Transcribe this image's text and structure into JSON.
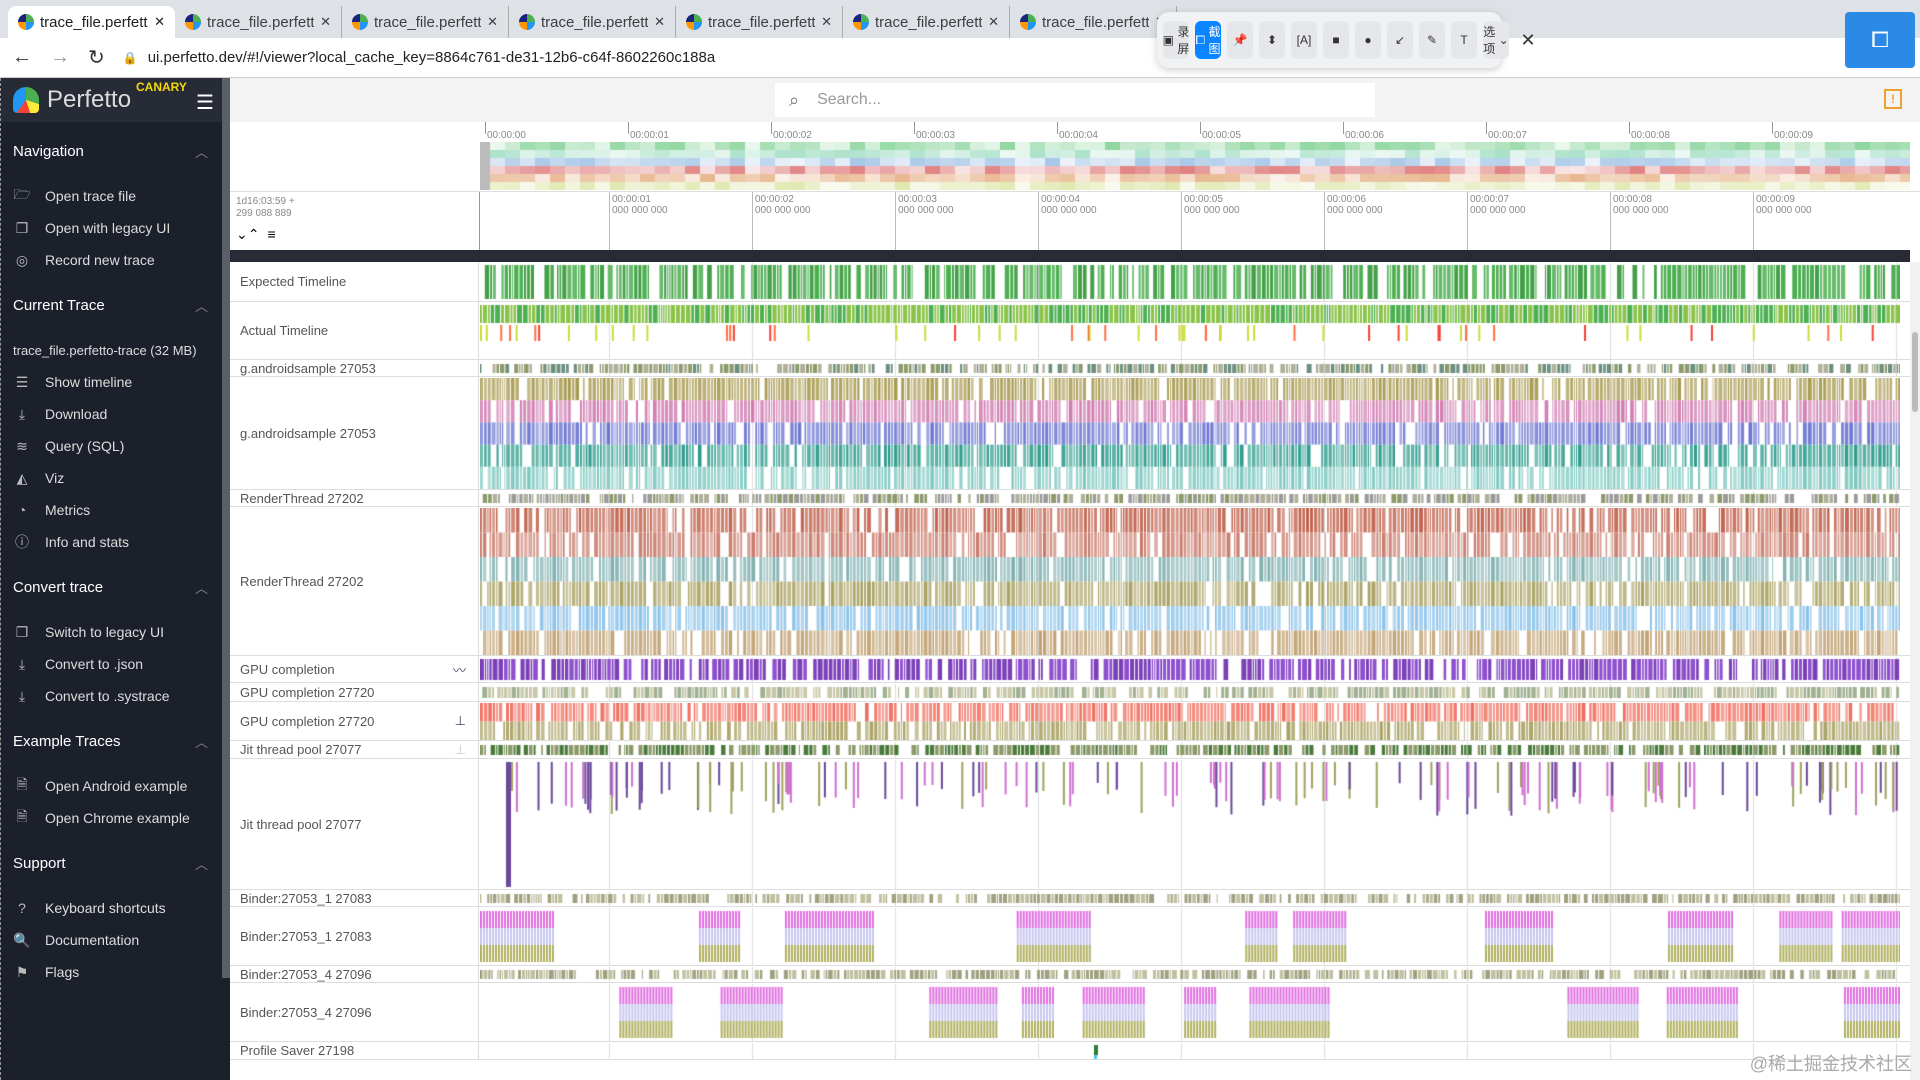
{
  "browser": {
    "tabs": [
      {
        "title": "trace_file.perfetto-trace",
        "active": true
      },
      {
        "title": "trace_file.perfetto-trace"
      },
      {
        "title": "trace_file.perfetto-trace"
      },
      {
        "title": "trace_file.perfetto-trace"
      },
      {
        "title": "trace_file.perfetto-trace"
      },
      {
        "title": "trace_file.perfetto-trace"
      },
      {
        "title": "trace_file.perfetto-trace"
      }
    ],
    "url": "ui.perfetto.dev/#!/viewer?local_cache_key=8864c761-de31-12b6-c64f-8602260c188a"
  },
  "capture_toolbar": {
    "record": "录屏",
    "screenshot": "截图",
    "options": "选项"
  },
  "app": {
    "name": "Perfetto",
    "channel": "CANARY"
  },
  "search": {
    "placeholder": "Search..."
  },
  "sidebar": {
    "sections": [
      {
        "title": "Navigation",
        "items": [
          {
            "icon": "folder-open-icon",
            "glyph": "🗁",
            "label": "Open trace file"
          },
          {
            "icon": "filter-none-icon",
            "glyph": "❐",
            "label": "Open with legacy UI"
          },
          {
            "icon": "record-icon",
            "glyph": "◎",
            "label": "Record new trace"
          }
        ]
      },
      {
        "title": "Current Trace",
        "trace_name": "trace_file.perfetto-trace (32 MB)",
        "items": [
          {
            "icon": "timeline-icon",
            "glyph": "☰",
            "label": "Show timeline"
          },
          {
            "icon": "download-icon",
            "glyph": "⤓",
            "label": "Download"
          },
          {
            "icon": "database-icon",
            "glyph": "≋",
            "label": "Query (SQL)"
          },
          {
            "icon": "chart-icon",
            "glyph": "◭",
            "label": "Viz"
          },
          {
            "icon": "speed-icon",
            "glyph": "◔",
            "label": "Metrics"
          },
          {
            "icon": "info-icon",
            "glyph": "ⓘ",
            "label": "Info and stats"
          }
        ]
      },
      {
        "title": "Convert trace",
        "items": [
          {
            "icon": "filter-none-icon",
            "glyph": "❐",
            "label": "Switch to legacy UI"
          },
          {
            "icon": "download-icon",
            "glyph": "⤓",
            "label": "Convert to .json"
          },
          {
            "icon": "download-icon",
            "glyph": "⤓",
            "label": "Convert to .systrace"
          }
        ]
      },
      {
        "title": "Example Traces",
        "items": [
          {
            "icon": "description-icon",
            "glyph": "🗎",
            "label": "Open Android example"
          },
          {
            "icon": "description-icon",
            "glyph": "🗎",
            "label": "Open Chrome example"
          }
        ]
      },
      {
        "title": "Support",
        "items": [
          {
            "icon": "help-icon",
            "glyph": "?",
            "label": "Keyboard shortcuts"
          },
          {
            "icon": "find-in-page-icon",
            "glyph": "🔍",
            "label": "Documentation"
          },
          {
            "icon": "flag-icon",
            "glyph": "⚑",
            "label": "Flags"
          }
        ]
      }
    ]
  },
  "timeline": {
    "overview_ticks": [
      "00:00:00",
      "00:00:01",
      "00:00:02",
      "00:00:03",
      "00:00:04",
      "00:00:05",
      "00:00:06",
      "00:00:07",
      "00:00:08",
      "00:00:09"
    ],
    "offset": {
      "line1": "1d16:03:59 +",
      "line2": "299 088 889"
    },
    "ruler_ticks": [
      {
        "t": "00:00:01",
        "ns": "000 000 000"
      },
      {
        "t": "00:00:02",
        "ns": "000 000 000"
      },
      {
        "t": "00:00:03",
        "ns": "000 000 000"
      },
      {
        "t": "00:00:04",
        "ns": "000 000 000"
      },
      {
        "t": "00:00:05",
        "ns": "000 000 000"
      },
      {
        "t": "00:00:06",
        "ns": "000 000 000"
      },
      {
        "t": "00:00:07",
        "ns": "000 000 000"
      },
      {
        "t": "00:00:08",
        "ns": "000 000 000"
      },
      {
        "t": "00:00:09",
        "ns": "000 000 000"
      }
    ],
    "tracks": [
      {
        "name": "Expected Timeline",
        "kind": "slices",
        "colors": [
          "#4caf50",
          "#43a047",
          "#66bb6a"
        ]
      },
      {
        "name": "Actual Timeline",
        "kind": "actual",
        "colors": [
          "#4caf50",
          "#8bc34a",
          "#f44336",
          "#ff7043",
          "#cddc39"
        ]
      },
      {
        "name": "g.androidsample 27053",
        "kind": "thin",
        "colors": [
          "#8c9a6a",
          "#6b8f7f",
          "#b0b09a"
        ]
      },
      {
        "name": "g.androidsample 27053",
        "kind": "stack",
        "colors": [
          "#a89a50",
          "#d07bb0",
          "#6a74d0",
          "#2a9a8a",
          "#7ec8c0"
        ]
      },
      {
        "name": "RenderThread 27202",
        "kind": "thin",
        "colors": [
          "#8c9a6a",
          "#9a9a9a",
          "#b0b09a"
        ]
      },
      {
        "name": "RenderThread 27202",
        "kind": "stack",
        "colors": [
          "#c0604a",
          "#c97a6a",
          "#7fb0b0",
          "#a8a060",
          "#87c0e8",
          "#c0a070"
        ]
      },
      {
        "name": "GPU completion",
        "kind": "slices",
        "colors": [
          "#7b3fb8",
          "#8e4fcf"
        ],
        "action": "chart-icon"
      },
      {
        "name": "GPU completion 27720",
        "kind": "thin",
        "colors": [
          "#c8c8a8",
          "#a0b090"
        ]
      },
      {
        "name": "GPU completion 27720",
        "kind": "stack",
        "colors": [
          "#f06a5a",
          "#a8a060"
        ],
        "action": "pin-icon"
      },
      {
        "name": "Jit thread pool 27077",
        "kind": "thin",
        "colors": [
          "#8c9a6a",
          "#4a7a3a"
        ],
        "action": "pin-outline-icon"
      },
      {
        "name": "Jit thread pool 27077",
        "kind": "sparse",
        "colors": [
          "#d070d0",
          "#a0a060",
          "#6a4a9a"
        ]
      },
      {
        "name": "Binder:27053_1 27083",
        "kind": "thin",
        "colors": [
          "#a0a080",
          "#c0c0a0"
        ]
      },
      {
        "name": "Binder:27053_1 27083",
        "kind": "binder",
        "colors": [
          "#e070e0",
          "#c8c8f0",
          "#b0b060"
        ]
      },
      {
        "name": "Binder:27053_4 27096",
        "kind": "thin",
        "colors": [
          "#a0a080",
          "#c0c0a0"
        ]
      },
      {
        "name": "Binder:27053_4 27096",
        "kind": "binder",
        "colors": [
          "#e070e0",
          "#c8c8f0",
          "#b0b060"
        ]
      },
      {
        "name": "Profile Saver 27198",
        "kind": "sparse1",
        "colors": [
          "#2e7d32",
          "#4fc3f7"
        ]
      }
    ]
  },
  "watermark": "@稀土掘金技术社区"
}
